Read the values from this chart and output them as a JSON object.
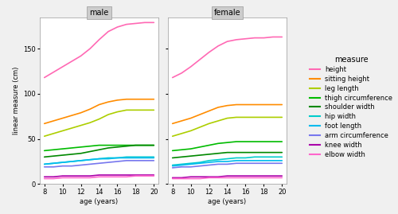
{
  "age": [
    8,
    9,
    10,
    11,
    12,
    13,
    14,
    15,
    16,
    17,
    18,
    19,
    20
  ],
  "male": {
    "height": [
      118,
      124,
      130,
      136,
      142,
      150,
      160,
      169,
      174,
      177,
      178,
      179,
      179
    ],
    "sitting_height": [
      67,
      70,
      73,
      76,
      79,
      83,
      88,
      91,
      93,
      94,
      94,
      94,
      94
    ],
    "leg_length": [
      53,
      56,
      59,
      62,
      65,
      68,
      72,
      77,
      80,
      82,
      82,
      82,
      82
    ],
    "thigh_circumference": [
      37,
      38,
      39,
      40,
      41,
      42,
      43,
      43,
      43,
      43,
      43,
      43,
      43
    ],
    "shoulder_width": [
      30,
      31,
      32,
      33,
      34,
      36,
      38,
      40,
      41,
      42,
      43,
      43,
      43
    ],
    "hip_width": [
      22,
      23,
      24,
      25,
      26,
      27,
      28,
      29,
      29,
      30,
      30,
      30,
      30
    ],
    "foot_length": [
      22,
      23,
      24,
      25,
      26,
      27,
      28,
      28,
      29,
      29,
      29,
      29,
      29
    ],
    "arm_circumference": [
      19,
      19,
      20,
      20,
      21,
      22,
      23,
      24,
      25,
      26,
      26,
      26,
      26
    ],
    "knee_width": [
      8,
      8,
      9,
      9,
      9,
      9,
      10,
      10,
      10,
      10,
      10,
      10,
      10
    ],
    "elbow_width": [
      6,
      6,
      7,
      7,
      7,
      7,
      8,
      8,
      8,
      8,
      9,
      9,
      9
    ]
  },
  "female": {
    "height": [
      118,
      123,
      130,
      138,
      146,
      153,
      158,
      160,
      161,
      162,
      162,
      163,
      163
    ],
    "sitting_height": [
      67,
      70,
      73,
      77,
      81,
      85,
      87,
      88,
      88,
      88,
      88,
      88,
      88
    ],
    "leg_length": [
      53,
      56,
      59,
      63,
      67,
      70,
      73,
      74,
      74,
      74,
      74,
      74,
      74
    ],
    "thigh_circumference": [
      37,
      38,
      39,
      41,
      43,
      45,
      46,
      47,
      47,
      47,
      47,
      47,
      47
    ],
    "shoulder_width": [
      29,
      30,
      31,
      32,
      33,
      34,
      35,
      35,
      35,
      35,
      35,
      35,
      35
    ],
    "hip_width": [
      21,
      22,
      23,
      24,
      26,
      27,
      28,
      29,
      29,
      30,
      30,
      30,
      30
    ],
    "foot_length": [
      20,
      21,
      22,
      23,
      24,
      25,
      25,
      26,
      26,
      26,
      26,
      26,
      26
    ],
    "arm_circumference": [
      18,
      19,
      19,
      20,
      21,
      22,
      22,
      23,
      23,
      23,
      23,
      23,
      23
    ],
    "knee_width": [
      7,
      7,
      8,
      8,
      8,
      8,
      9,
      9,
      9,
      9,
      9,
      9,
      9
    ],
    "elbow_width": [
      6,
      6,
      6,
      6,
      7,
      7,
      7,
      7,
      7,
      7,
      7,
      7,
      7
    ]
  },
  "colors": {
    "height": "#FF69B4",
    "sitting_height": "#FF8C00",
    "leg_length": "#ADCE00",
    "thigh_circumference": "#00BB00",
    "shoulder_width": "#008800",
    "hip_width": "#00CCCC",
    "foot_length": "#00BBEE",
    "arm_circumference": "#7777EE",
    "knee_width": "#AA00AA",
    "elbow_width": "#FF66CC"
  },
  "legend_labels": [
    "height",
    "sitting height",
    "leg length",
    "thigh circumference",
    "shoulder width",
    "hip width",
    "foot length",
    "arm circumference",
    "knee width",
    "elbow width"
  ],
  "measures": [
    "height",
    "sitting_height",
    "leg_length",
    "thigh_circumference",
    "shoulder_width",
    "hip_width",
    "foot_length",
    "arm_circumference",
    "knee_width",
    "elbow_width"
  ],
  "ylabel": "linear measure (cm)",
  "xlabel": "age (years)",
  "ylim": [
    0,
    185
  ],
  "yticks": [
    0,
    50,
    100,
    150
  ],
  "xticks": [
    8,
    10,
    12,
    14,
    16,
    18,
    20
  ],
  "panel_bg": "#F0F0F0",
  "plot_bg": "#FFFFFF",
  "grid_color": "#FFFFFF",
  "strip_bg": "#CCCCCC",
  "strip_text_size": 7,
  "axis_text_size": 6,
  "legend_text_size": 6,
  "legend_title_size": 7,
  "linewidth": 1.2
}
